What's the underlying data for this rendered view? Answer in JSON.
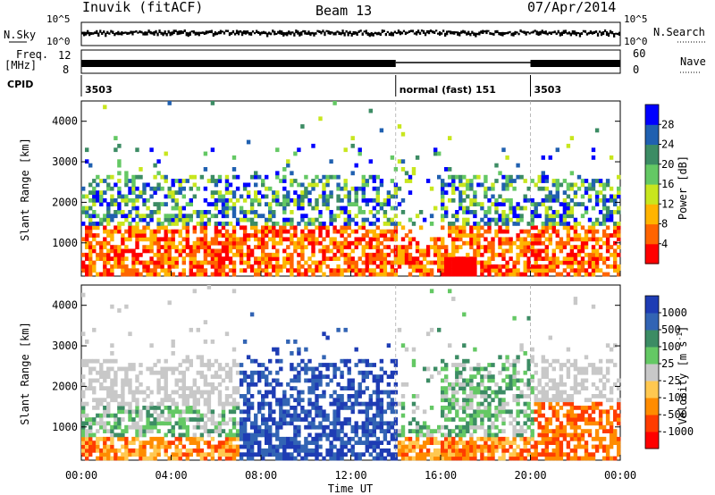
{
  "header": {
    "station": "Inuvik (fitACF)",
    "beam": "Beam 13",
    "date": "07/Apr/2014"
  },
  "param_panels": {
    "left": {
      "nsky": "N.Sky",
      "freq_top": "Freq.",
      "freq_unit": "[MHz]",
      "cpid": "CPID",
      "noise_tick_hi": "10^5",
      "noise_tick_lo": "10^0",
      "freq_tick_hi": "12",
      "freq_tick_lo": "8"
    },
    "right": {
      "nsearch": "N.Search",
      "noise_tick_hi": "10^5",
      "noise_tick_lo": "10^0",
      "nave": "Nave",
      "nave_tick_hi": "60",
      "nave_tick_lo": "0"
    },
    "cpid_segments": [
      {
        "label": "3503",
        "start_hour": 0,
        "end_hour": 14
      },
      {
        "label": "normal (fast) 151",
        "start_hour": 14,
        "end_hour": 20
      },
      {
        "label": "3503",
        "start_hour": 20,
        "end_hour": 24
      }
    ]
  },
  "chart_data": [
    {
      "type": "heatmap",
      "name": "power",
      "ylabel": "Slant Range [km]",
      "xlim_hours": [
        0,
        24
      ],
      "ylim_km": [
        180,
        4500
      ],
      "y_ticks": [
        1000,
        2000,
        3000,
        4000
      ],
      "colorbar": {
        "label": "Power [dB]",
        "ticks": [
          "28",
          "24",
          "20",
          "16",
          "12",
          "8",
          "4"
        ],
        "colors": [
          "#0000ff",
          "#2060b0",
          "#3c8c64",
          "#64c864",
          "#c8e61e",
          "#ffb400",
          "#ff6400",
          "#ff0000"
        ]
      }
    },
    {
      "type": "heatmap",
      "name": "velocity",
      "ylabel": "Slant Range [km]",
      "xlabel": "Time UT",
      "xlim_hours": [
        0,
        24
      ],
      "ylim_km": [
        180,
        4500
      ],
      "y_ticks": [
        1000,
        2000,
        3000,
        4000
      ],
      "x_ticks": [
        "00:00",
        "04:00",
        "08:00",
        "12:00",
        "16:00",
        "20:00",
        "00:00"
      ],
      "colorbar": {
        "label": "Velocity [m s",
        "label_sup": "-1",
        "label_tail": "]",
        "ticks": [
          "1000",
          "500",
          "100",
          "25",
          "-25",
          "-100",
          "-500",
          "-1000"
        ],
        "colors": [
          "#1e3cb4",
          "#3264b4",
          "#3c8c64",
          "#64c864",
          "#c8c8c8",
          "#ffc850",
          "#ff8c00",
          "#ff3c00",
          "#ff0000"
        ]
      }
    }
  ],
  "time_markers_hours": [
    14,
    20
  ]
}
